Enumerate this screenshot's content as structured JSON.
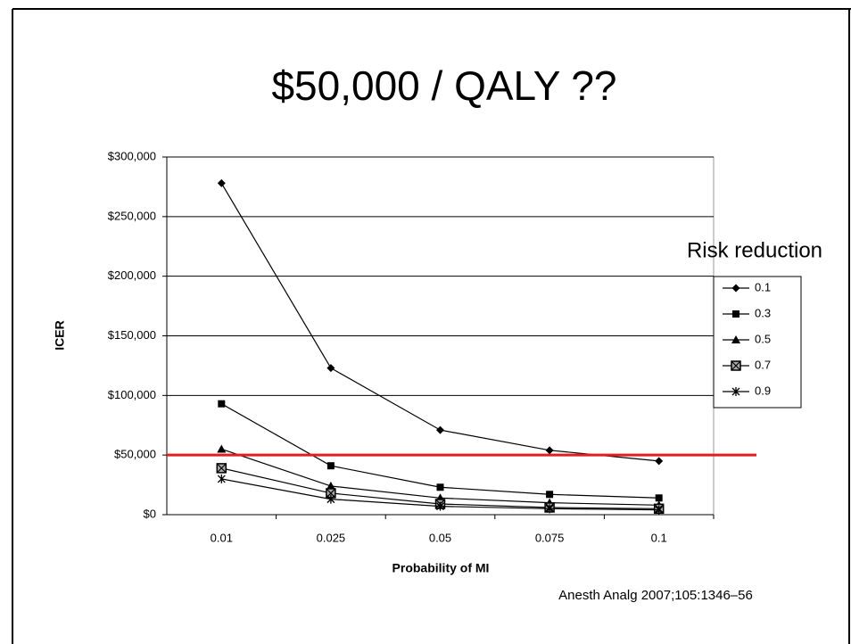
{
  "chart_data": {
    "type": "line",
    "title": "$50,000 / QALY ??",
    "x_label": "Probability of MI",
    "y_label": "ICER",
    "legend_title": "Risk reduction",
    "source": "Anesth Analg 2007;105:1346–56",
    "categories": [
      "0.01",
      "0.025",
      "0.05",
      "0.075",
      "0.1"
    ],
    "series": [
      {
        "name": "0.1",
        "color": "#000000",
        "marker": "diamond",
        "values": [
          278000,
          123000,
          71000,
          54000,
          45000
        ]
      },
      {
        "name": "0.3",
        "color": "#000000",
        "marker": "square",
        "values": [
          93000,
          41000,
          23000,
          17000,
          14000
        ]
      },
      {
        "name": "0.5",
        "color": "#000000",
        "marker": "triangle",
        "values": [
          55000,
          24000,
          14000,
          10000,
          8000
        ]
      },
      {
        "name": "0.7",
        "color": "#000000",
        "marker": "boxx",
        "values": [
          39000,
          18000,
          9000,
          6000,
          5000
        ]
      },
      {
        "name": "0.9",
        "color": "#000000",
        "marker": "star",
        "values": [
          30000,
          13000,
          7000,
          5000,
          4000
        ]
      }
    ],
    "ylim": [
      0,
      300000
    ],
    "yticks": [
      {
        "value": 0,
        "label": "$0"
      },
      {
        "value": 50000,
        "label": "$50,000"
      },
      {
        "value": 100000,
        "label": "$100,000"
      },
      {
        "value": 150000,
        "label": "$150,000"
      },
      {
        "value": 200000,
        "label": "$200,000"
      },
      {
        "value": 250000,
        "label": "$250,000"
      },
      {
        "value": 300000,
        "label": "$300,000"
      }
    ],
    "grid": true,
    "legend": "right",
    "reference_line": {
      "value": 50000,
      "color": "#e41e1e"
    }
  }
}
